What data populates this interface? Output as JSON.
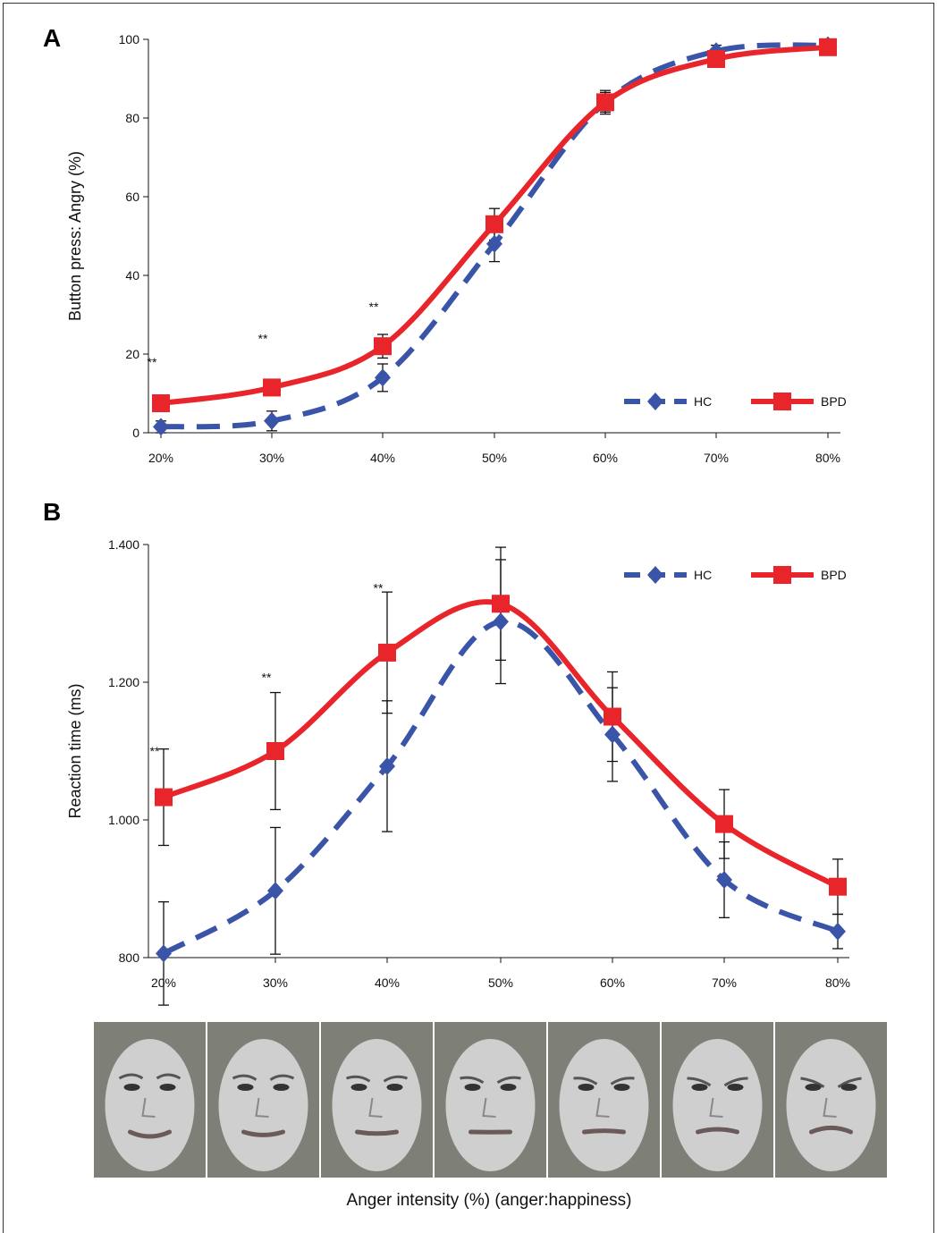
{
  "figure": {
    "xlabel": "Anger intensity (%) (anger:happiness)",
    "face_strip": {
      "count": 7,
      "colors": {
        "bg": "#7e8078",
        "face": "#cfcfcf"
      }
    }
  },
  "chart_data": [
    {
      "panel": "A",
      "type": "line",
      "title": "",
      "xlabel": "",
      "ylabel": "Button press: Angry (%)",
      "categories": [
        "20%",
        "30%",
        "40%",
        "50%",
        "60%",
        "70%",
        "80%"
      ],
      "yticks": [
        "0",
        "20",
        "40",
        "60",
        "80",
        "100"
      ],
      "ytick_values": [
        0,
        20,
        40,
        60,
        80,
        100
      ],
      "ylim": [
        0,
        100
      ],
      "grid": false,
      "legend": "bottom-right",
      "series": [
        {
          "name": "HC",
          "color": "#3a55a8",
          "style": "dashed",
          "marker": "diamond",
          "values": [
            1.5,
            3,
            14,
            48,
            84,
            97,
            98.5
          ],
          "errors": [
            1.5,
            2.5,
            3.5,
            4.5,
            2.5,
            1.5,
            1
          ]
        },
        {
          "name": "BPD",
          "color": "#e8252b",
          "style": "solid",
          "marker": "square",
          "values": [
            7.5,
            11.5,
            22,
            53,
            84,
            95,
            98
          ],
          "errors": [
            0,
            1.5,
            3,
            4,
            3,
            1.5,
            1
          ]
        }
      ],
      "annotations": [
        {
          "text": "**",
          "x": "20%",
          "y": 18
        },
        {
          "text": "**",
          "x": "30%",
          "y": 24
        },
        {
          "text": "**",
          "x": "40%",
          "y": 32
        }
      ]
    },
    {
      "panel": "B",
      "type": "line",
      "title": "",
      "xlabel": "",
      "ylabel": "Reaction time (ms)",
      "categories": [
        "20%",
        "30%",
        "40%",
        "50%",
        "60%",
        "70%",
        "80%"
      ],
      "yticks": [
        "800",
        "1.000",
        "1.200",
        "1.400"
      ],
      "ytick_values": [
        800,
        1000,
        1200,
        1400
      ],
      "ylim": [
        800,
        1400
      ],
      "grid": false,
      "legend": "top-right",
      "series": [
        {
          "name": "HC",
          "color": "#3a55a8",
          "style": "dashed",
          "marker": "diamond",
          "values": [
            806,
            897,
            1078,
            1288,
            1124,
            913,
            838
          ],
          "errors": [
            75,
            92,
            95,
            90,
            68,
            55,
            25
          ]
        },
        {
          "name": "BPD",
          "color": "#e8252b",
          "style": "solid",
          "marker": "square",
          "values": [
            1033,
            1100,
            1243,
            1314,
            1150,
            994,
            903
          ],
          "errors": [
            70,
            85,
            88,
            82,
            65,
            50,
            40
          ]
        }
      ],
      "annotations": [
        {
          "text": "**",
          "x": "20%",
          "y": 1100
        },
        {
          "text": "**",
          "x": "30%",
          "y": 1207
        },
        {
          "text": "**",
          "x": "40%",
          "y": 1337
        }
      ]
    }
  ]
}
